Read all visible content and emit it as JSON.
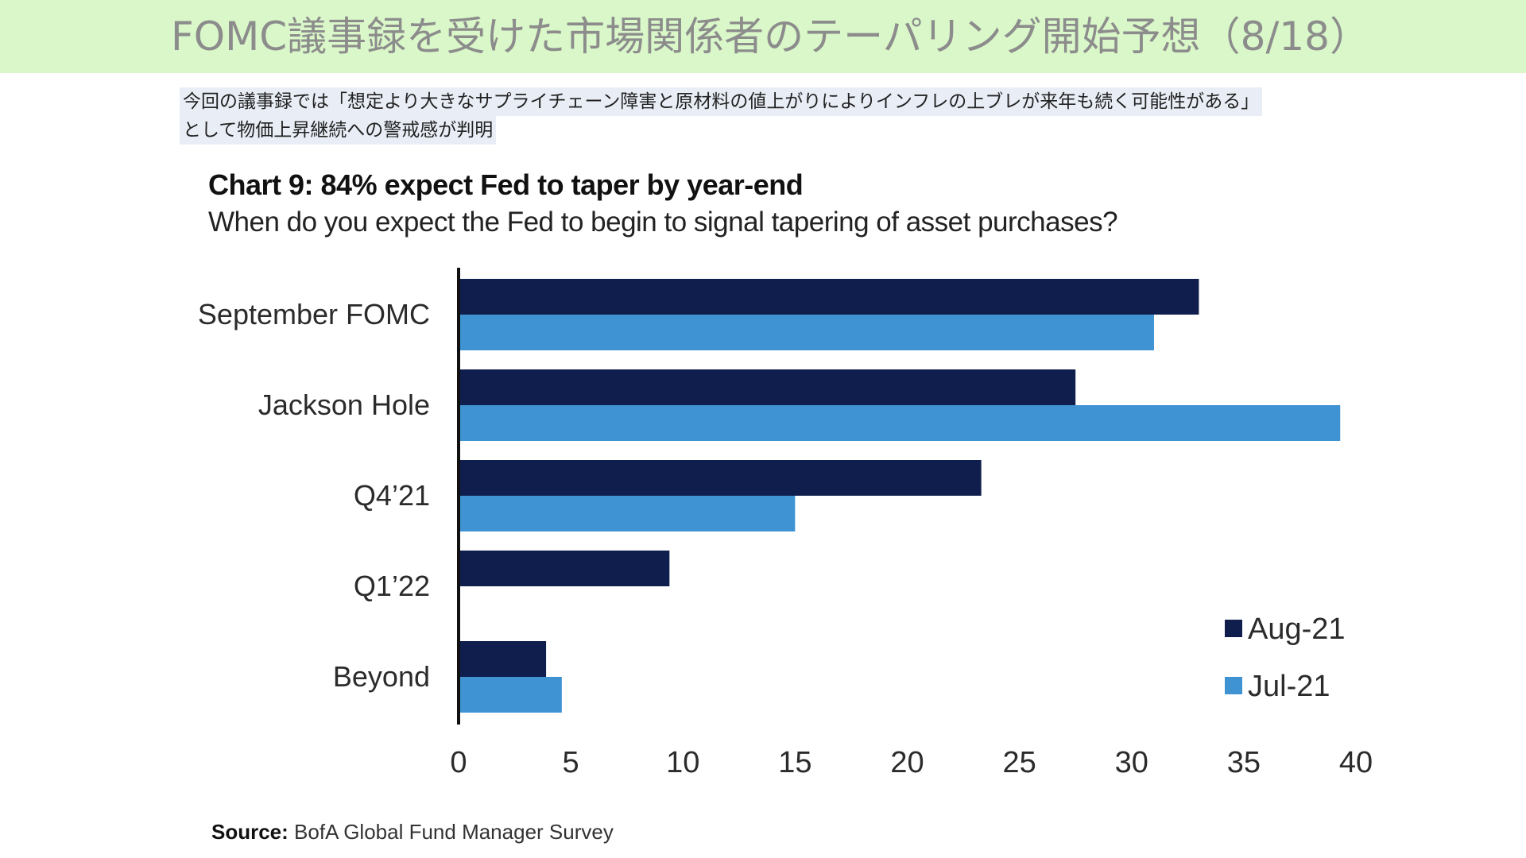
{
  "header": {
    "title": "FOMC議事録を受けた市場関係者のテーパリング開始予想（8/18）"
  },
  "lead": {
    "line1": "今回の議事録では「想定より大きなサプライチェーン障害と原材料の値上がりによりインフレの上ブレが来年も続く可能性がある」",
    "line2": "として物価上昇継続への警戒感が判明"
  },
  "source": {
    "label": "Source:",
    "text": "BofA Global Fund Manager Survey"
  },
  "colors": {
    "aug21": "#0f1e4d",
    "jul21": "#3f93d3",
    "banner": "#d9f7c8"
  },
  "chart_data": {
    "type": "bar",
    "orientation": "horizontal",
    "title": "Chart 9: 84% expect Fed to taper by year-end",
    "subtitle": "When do you expect the Fed to begin to signal tapering of asset purchases?",
    "categories": [
      "September FOMC",
      "Jackson Hole",
      "Q4’21",
      "Q1’22",
      "Beyond"
    ],
    "series": [
      {
        "name": "Aug-21",
        "values": [
          33,
          27.5,
          23.3,
          9.4,
          3.9
        ]
      },
      {
        "name": "Jul-21",
        "values": [
          31,
          39.3,
          15,
          0,
          4.6
        ]
      }
    ],
    "xlim": [
      0,
      40
    ],
    "xticks": [
      0,
      5,
      10,
      15,
      20,
      25,
      30,
      35,
      40
    ],
    "grid": false,
    "legend_position": "bottom-right"
  }
}
